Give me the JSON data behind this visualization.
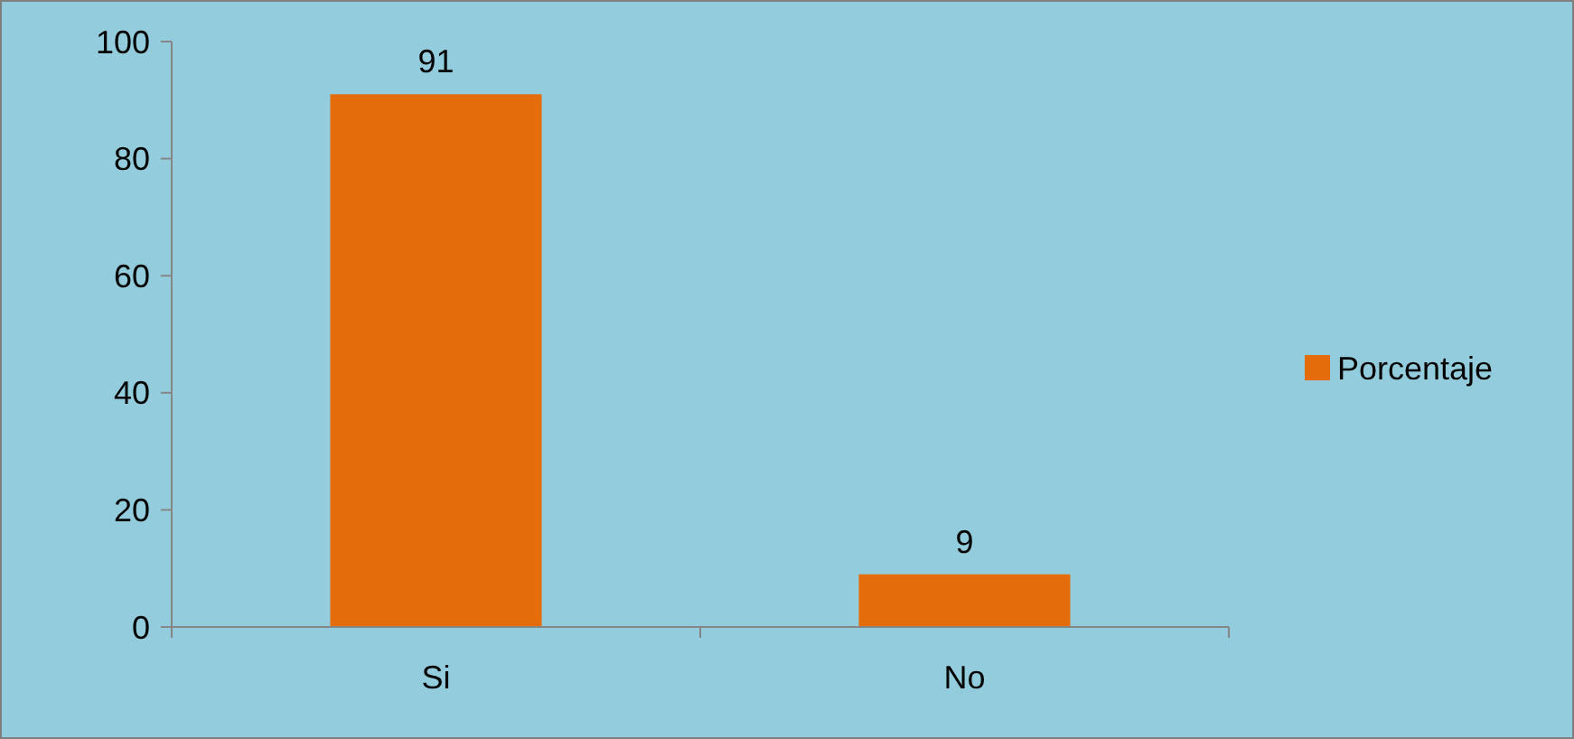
{
  "chart_data": {
    "type": "bar",
    "categories": [
      "Si",
      "No"
    ],
    "series": [
      {
        "name": "Porcentaje",
        "color": "#e46c0a",
        "values": [
          91,
          9
        ]
      }
    ],
    "ylim": [
      0,
      100
    ],
    "yticks": [
      0,
      20,
      40,
      60,
      80,
      100
    ],
    "grid": false,
    "legend": "right",
    "data_labels": true
  }
}
